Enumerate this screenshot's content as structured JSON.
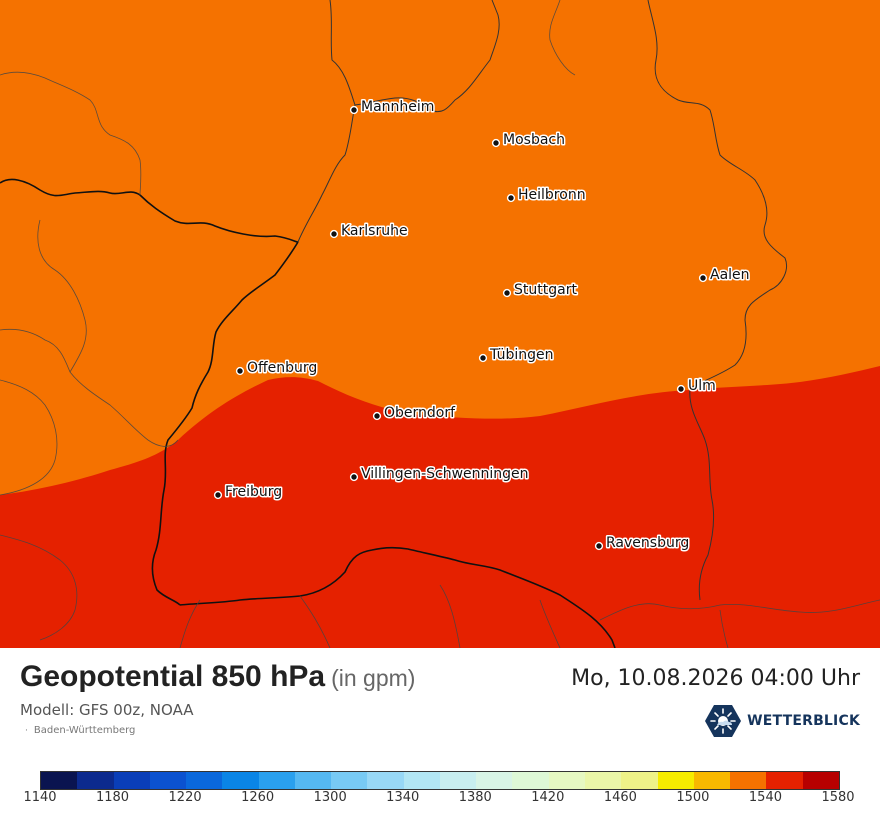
{
  "map": {
    "colors": {
      "band_1540": "#f57200",
      "band_1560": "#e52100",
      "border": "#222222",
      "land_line": "#333333"
    },
    "cities": [
      {
        "name": "Mannheim",
        "id": "mannheim"
      },
      {
        "name": "Mosbach",
        "id": "mosbach"
      },
      {
        "name": "Heilbronn",
        "id": "heilbronn"
      },
      {
        "name": "Karlsruhe",
        "id": "karlsruhe"
      },
      {
        "name": "Aalen",
        "id": "aalen"
      },
      {
        "name": "Stuttgart",
        "id": "stuttgart"
      },
      {
        "name": "Tübingen",
        "id": "tubingen"
      },
      {
        "name": "Offenburg",
        "id": "offenburg"
      },
      {
        "name": "Ulm",
        "id": "ulm"
      },
      {
        "name": "Oberndorf",
        "id": "oberndorf"
      },
      {
        "name": "Villingen-Schwenningen",
        "id": "villingen"
      },
      {
        "name": "Freiburg",
        "id": "freiburg"
      },
      {
        "name": "Ravensburg",
        "id": "ravensburg"
      }
    ]
  },
  "header": {
    "title": "Geopotential 850 hPa",
    "unit": "(in gpm)",
    "datetime": "Mo, 10.08.2026 04:00 Uhr",
    "model": "Modell: GFS 00z, NOAA",
    "region": "Baden-Württemberg",
    "brand": "WETTERBLICK",
    "brand_icon": "sun-cloud-icon"
  },
  "legend": {
    "colors": [
      "#0a1450",
      "#0c2a8e",
      "#0a3eb8",
      "#0b52d0",
      "#0a68dc",
      "#0a85e6",
      "#2aa0ee",
      "#55b8f2",
      "#78caf4",
      "#98d8f6",
      "#b2e6f4",
      "#c8eef0",
      "#d8f4e6",
      "#def8d6",
      "#e6f8c2",
      "#eaf6a8",
      "#eef288",
      "#f6ec00",
      "#f8b800",
      "#f57200",
      "#e52100",
      "#b70000"
    ],
    "ticks": [
      "1140",
      "1180",
      "1220",
      "1260",
      "1300",
      "1340",
      "1380",
      "1420",
      "1460",
      "1500",
      "1540",
      "1580"
    ]
  }
}
